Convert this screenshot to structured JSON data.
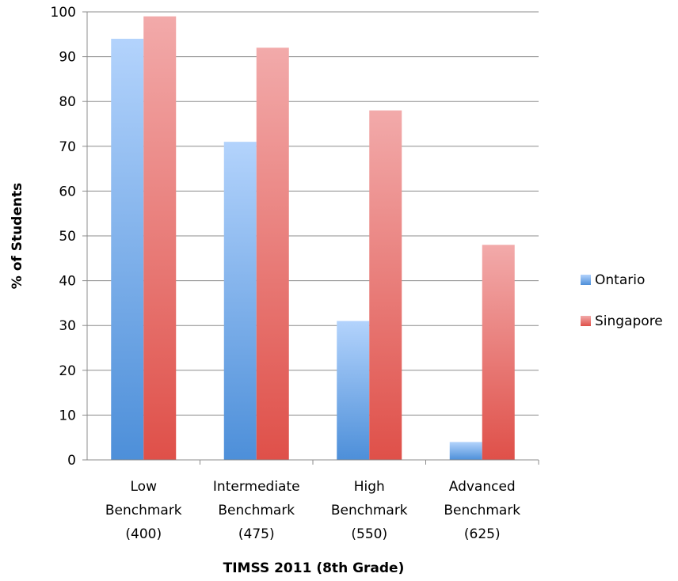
{
  "chart_data": {
    "type": "bar",
    "title": "",
    "xlabel": "TIMSS 2011 (8th Grade)",
    "ylabel": "% of Students",
    "ylim": [
      0,
      100
    ],
    "yticks": [
      "0",
      "10",
      "20",
      "30",
      "40",
      "50",
      "60",
      "70",
      "80",
      "90",
      "100"
    ],
    "grid": true,
    "legend_position": "right",
    "categories": [
      [
        "Low",
        "Benchmark",
        "(400)"
      ],
      [
        "Intermediate",
        "Benchmark",
        "(475)"
      ],
      [
        "High",
        "Benchmark",
        "(550)"
      ],
      [
        "Advanced",
        "Benchmark",
        "(625)"
      ]
    ],
    "series": [
      {
        "name": "Ontario",
        "color": "#5b9bd5",
        "values": [
          94,
          71,
          31,
          4
        ]
      },
      {
        "name": "Singapore",
        "color": "#e0504d",
        "values": [
          99,
          92,
          78,
          48
        ]
      }
    ]
  }
}
